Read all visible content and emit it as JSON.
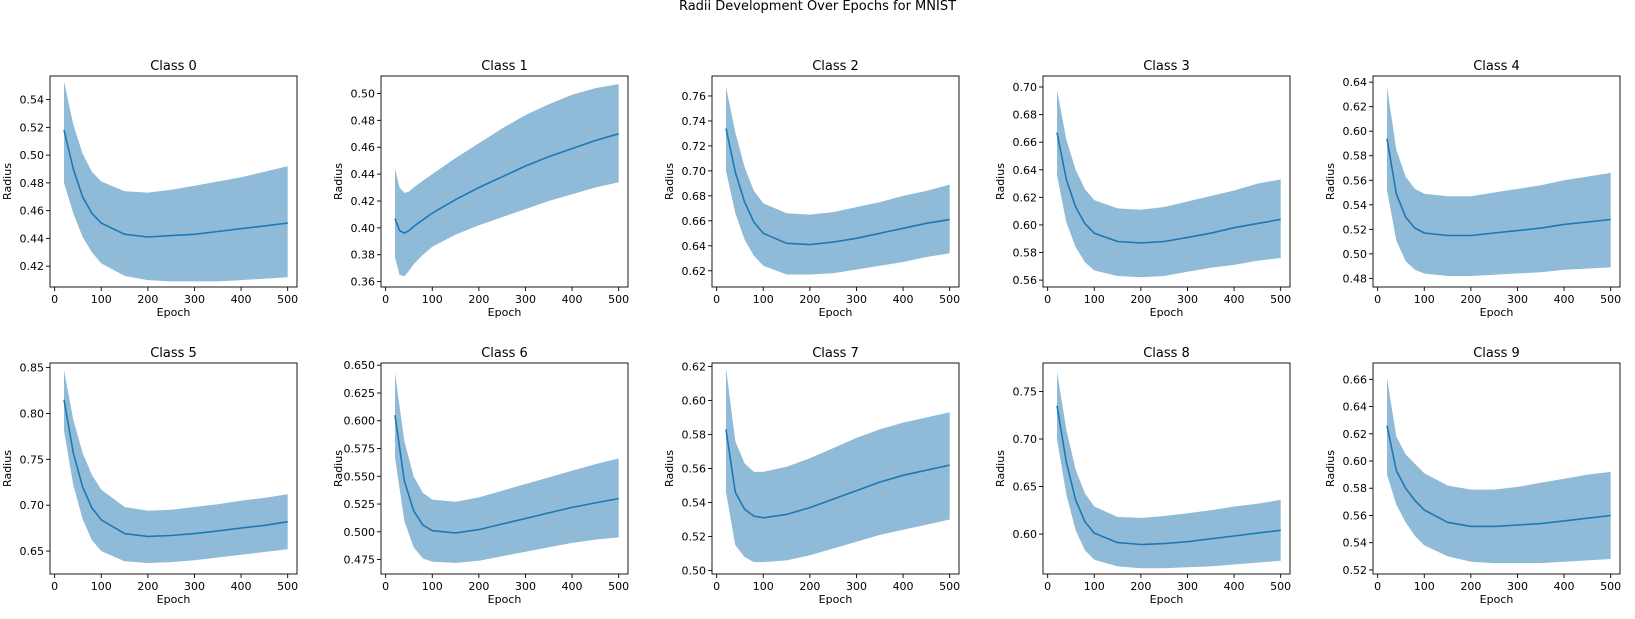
{
  "figure_title": "Radii Development Over Epochs for MNIST",
  "colors": {
    "line": "#1f77b4",
    "band": "#1f77b4",
    "band_opacity": 0.5
  },
  "chart_data": [
    {
      "type": "line",
      "title": "Class 0",
      "xlabel": "Epoch",
      "ylabel": "Radius",
      "xlim": [
        -10,
        520
      ],
      "ylim": [
        0.405,
        0.557
      ],
      "xticks": [
        0,
        100,
        200,
        300,
        400,
        500
      ],
      "yticks": [
        0.42,
        0.44,
        0.46,
        0.48,
        0.5,
        0.52,
        0.54
      ],
      "ytick_labels": [
        "0.42",
        "0.44",
        "0.46",
        "0.48",
        "0.50",
        "0.52",
        "0.54"
      ],
      "x": [
        20,
        40,
        60,
        80,
        100,
        150,
        200,
        250,
        300,
        350,
        400,
        450,
        500
      ],
      "mean": [
        0.518,
        0.49,
        0.47,
        0.458,
        0.451,
        0.443,
        0.441,
        0.442,
        0.443,
        0.445,
        0.447,
        0.449,
        0.451
      ],
      "upper": [
        0.553,
        0.522,
        0.501,
        0.488,
        0.481,
        0.474,
        0.473,
        0.475,
        0.478,
        0.481,
        0.484,
        0.488,
        0.492
      ],
      "lower": [
        0.48,
        0.458,
        0.441,
        0.43,
        0.422,
        0.413,
        0.41,
        0.409,
        0.409,
        0.409,
        0.41,
        0.411,
        0.412
      ]
    },
    {
      "type": "line",
      "title": "Class 1",
      "xlabel": "Epoch",
      "ylabel": "Radius",
      "xlim": [
        -10,
        520
      ],
      "ylim": [
        0.356,
        0.513
      ],
      "xticks": [
        0,
        100,
        200,
        300,
        400,
        500
      ],
      "yticks": [
        0.36,
        0.38,
        0.4,
        0.42,
        0.44,
        0.46,
        0.48,
        0.5
      ],
      "ytick_labels": [
        "0.36",
        "0.38",
        "0.40",
        "0.42",
        "0.44",
        "0.46",
        "0.48",
        "0.50"
      ],
      "x": [
        20,
        30,
        40,
        50,
        60,
        80,
        100,
        150,
        200,
        250,
        300,
        350,
        400,
        450,
        500
      ],
      "mean": [
        0.407,
        0.398,
        0.396,
        0.398,
        0.401,
        0.406,
        0.411,
        0.421,
        0.43,
        0.438,
        0.446,
        0.453,
        0.459,
        0.465,
        0.47
      ],
      "upper": [
        0.444,
        0.43,
        0.426,
        0.427,
        0.43,
        0.435,
        0.44,
        0.452,
        0.463,
        0.474,
        0.484,
        0.492,
        0.499,
        0.504,
        0.507
      ],
      "lower": [
        0.378,
        0.365,
        0.364,
        0.368,
        0.373,
        0.38,
        0.386,
        0.395,
        0.402,
        0.408,
        0.414,
        0.42,
        0.425,
        0.43,
        0.434
      ]
    },
    {
      "type": "line",
      "title": "Class 2",
      "xlabel": "Epoch",
      "ylabel": "Radius",
      "xlim": [
        -10,
        520
      ],
      "ylim": [
        0.607,
        0.776
      ],
      "xticks": [
        0,
        100,
        200,
        300,
        400,
        500
      ],
      "yticks": [
        0.62,
        0.64,
        0.66,
        0.68,
        0.7,
        0.72,
        0.74,
        0.76
      ],
      "ytick_labels": [
        "0.62",
        "0.64",
        "0.66",
        "0.68",
        "0.70",
        "0.72",
        "0.74",
        "0.76"
      ],
      "x": [
        20,
        40,
        60,
        80,
        100,
        150,
        200,
        250,
        300,
        350,
        400,
        450,
        500
      ],
      "mean": [
        0.734,
        0.699,
        0.675,
        0.659,
        0.65,
        0.642,
        0.641,
        0.643,
        0.646,
        0.65,
        0.654,
        0.658,
        0.661
      ],
      "upper": [
        0.767,
        0.731,
        0.703,
        0.684,
        0.674,
        0.666,
        0.665,
        0.667,
        0.671,
        0.675,
        0.68,
        0.684,
        0.689
      ],
      "lower": [
        0.7,
        0.666,
        0.645,
        0.632,
        0.624,
        0.617,
        0.617,
        0.618,
        0.621,
        0.624,
        0.627,
        0.631,
        0.634
      ]
    },
    {
      "type": "line",
      "title": "Class 3",
      "xlabel": "Epoch",
      "ylabel": "Radius",
      "xlim": [
        -10,
        520
      ],
      "ylim": [
        0.555,
        0.708
      ],
      "xticks": [
        0,
        100,
        200,
        300,
        400,
        500
      ],
      "yticks": [
        0.56,
        0.58,
        0.6,
        0.62,
        0.64,
        0.66,
        0.68,
        0.7
      ],
      "ytick_labels": [
        "0.56",
        "0.58",
        "0.60",
        "0.62",
        "0.64",
        "0.66",
        "0.68",
        "0.70"
      ],
      "x": [
        20,
        40,
        60,
        80,
        100,
        150,
        200,
        250,
        300,
        350,
        400,
        450,
        500
      ],
      "mean": [
        0.667,
        0.633,
        0.613,
        0.601,
        0.594,
        0.588,
        0.587,
        0.588,
        0.591,
        0.594,
        0.598,
        0.601,
        0.604
      ],
      "upper": [
        0.698,
        0.662,
        0.64,
        0.626,
        0.618,
        0.612,
        0.611,
        0.613,
        0.617,
        0.621,
        0.625,
        0.63,
        0.633
      ],
      "lower": [
        0.636,
        0.602,
        0.584,
        0.573,
        0.567,
        0.563,
        0.562,
        0.563,
        0.566,
        0.569,
        0.571,
        0.574,
        0.576
      ]
    },
    {
      "type": "line",
      "title": "Class 4",
      "xlabel": "Epoch",
      "ylabel": "Radius",
      "xlim": [
        -10,
        520
      ],
      "ylim": [
        0.473,
        0.645
      ],
      "xticks": [
        0,
        100,
        200,
        300,
        400,
        500
      ],
      "yticks": [
        0.48,
        0.5,
        0.52,
        0.54,
        0.56,
        0.58,
        0.6,
        0.62,
        0.64
      ],
      "ytick_labels": [
        "0.48",
        "0.50",
        "0.52",
        "0.54",
        "0.56",
        "0.58",
        "0.60",
        "0.62",
        "0.64"
      ],
      "x": [
        20,
        40,
        60,
        80,
        100,
        150,
        200,
        250,
        300,
        350,
        400,
        450,
        500
      ],
      "mean": [
        0.594,
        0.549,
        0.53,
        0.521,
        0.517,
        0.515,
        0.515,
        0.517,
        0.519,
        0.521,
        0.524,
        0.526,
        0.528
      ],
      "upper": [
        0.636,
        0.585,
        0.563,
        0.553,
        0.549,
        0.547,
        0.547,
        0.55,
        0.553,
        0.556,
        0.56,
        0.563,
        0.566
      ],
      "lower": [
        0.552,
        0.511,
        0.494,
        0.487,
        0.484,
        0.482,
        0.482,
        0.483,
        0.484,
        0.485,
        0.487,
        0.488,
        0.489
      ]
    },
    {
      "type": "line",
      "title": "Class 5",
      "xlabel": "Epoch",
      "ylabel": "Radius",
      "xlim": [
        -10,
        520
      ],
      "ylim": [
        0.625,
        0.855
      ],
      "xticks": [
        0,
        100,
        200,
        300,
        400,
        500
      ],
      "yticks": [
        0.65,
        0.7,
        0.75,
        0.8,
        0.85
      ],
      "ytick_labels": [
        "0.65",
        "0.70",
        "0.75",
        "0.80",
        "0.85"
      ],
      "x": [
        20,
        40,
        60,
        80,
        100,
        150,
        200,
        250,
        300,
        350,
        400,
        450,
        500
      ],
      "mean": [
        0.815,
        0.757,
        0.72,
        0.697,
        0.684,
        0.669,
        0.666,
        0.667,
        0.669,
        0.672,
        0.675,
        0.678,
        0.682
      ],
      "upper": [
        0.847,
        0.793,
        0.757,
        0.733,
        0.717,
        0.698,
        0.694,
        0.695,
        0.698,
        0.701,
        0.705,
        0.708,
        0.712
      ],
      "lower": [
        0.781,
        0.722,
        0.685,
        0.662,
        0.65,
        0.639,
        0.637,
        0.638,
        0.64,
        0.643,
        0.646,
        0.649,
        0.652
      ]
    },
    {
      "type": "line",
      "title": "Class 6",
      "xlabel": "Epoch",
      "ylabel": "Radius",
      "xlim": [
        -10,
        520
      ],
      "ylim": [
        0.462,
        0.652
      ],
      "xticks": [
        0,
        100,
        200,
        300,
        400,
        500
      ],
      "yticks": [
        0.475,
        0.5,
        0.525,
        0.55,
        0.575,
        0.6,
        0.625,
        0.65
      ],
      "ytick_labels": [
        "0.475",
        "0.500",
        "0.525",
        "0.550",
        "0.575",
        "0.600",
        "0.625",
        "0.650"
      ],
      "x": [
        20,
        40,
        60,
        80,
        100,
        150,
        200,
        250,
        300,
        350,
        400,
        450,
        500
      ],
      "mean": [
        0.605,
        0.546,
        0.519,
        0.506,
        0.501,
        0.499,
        0.502,
        0.507,
        0.512,
        0.517,
        0.522,
        0.526,
        0.53
      ],
      "upper": [
        0.643,
        0.582,
        0.55,
        0.535,
        0.529,
        0.527,
        0.531,
        0.537,
        0.543,
        0.549,
        0.555,
        0.561,
        0.566
      ],
      "lower": [
        0.567,
        0.51,
        0.486,
        0.476,
        0.473,
        0.472,
        0.474,
        0.478,
        0.482,
        0.486,
        0.49,
        0.493,
        0.495
      ]
    },
    {
      "type": "line",
      "title": "Class 7",
      "xlabel": "Epoch",
      "ylabel": "Radius",
      "xlim": [
        -10,
        520
      ],
      "ylim": [
        0.498,
        0.622
      ],
      "xticks": [
        0,
        100,
        200,
        300,
        400,
        500
      ],
      "yticks": [
        0.5,
        0.52,
        0.54,
        0.56,
        0.58,
        0.6,
        0.62
      ],
      "ytick_labels": [
        "0.50",
        "0.52",
        "0.54",
        "0.56",
        "0.58",
        "0.60",
        "0.62"
      ],
      "x": [
        20,
        40,
        60,
        80,
        100,
        150,
        200,
        250,
        300,
        350,
        400,
        450,
        500
      ],
      "mean": [
        0.583,
        0.546,
        0.536,
        0.532,
        0.531,
        0.533,
        0.537,
        0.542,
        0.547,
        0.552,
        0.556,
        0.559,
        0.562
      ],
      "upper": [
        0.619,
        0.576,
        0.563,
        0.558,
        0.558,
        0.561,
        0.566,
        0.572,
        0.578,
        0.583,
        0.587,
        0.59,
        0.593
      ],
      "lower": [
        0.546,
        0.515,
        0.508,
        0.505,
        0.505,
        0.506,
        0.509,
        0.513,
        0.517,
        0.521,
        0.524,
        0.527,
        0.53
      ]
    },
    {
      "type": "line",
      "title": "Class 8",
      "xlabel": "Epoch",
      "ylabel": "Radius",
      "xlim": [
        -10,
        520
      ],
      "ylim": [
        0.558,
        0.78
      ],
      "xticks": [
        0,
        100,
        200,
        300,
        400,
        500
      ],
      "yticks": [
        0.6,
        0.65,
        0.7,
        0.75
      ],
      "ytick_labels": [
        "0.60",
        "0.65",
        "0.70",
        "0.75"
      ],
      "x": [
        20,
        40,
        60,
        80,
        100,
        150,
        200,
        250,
        300,
        350,
        400,
        450,
        500
      ],
      "mean": [
        0.735,
        0.676,
        0.636,
        0.613,
        0.601,
        0.591,
        0.589,
        0.59,
        0.592,
        0.595,
        0.598,
        0.601,
        0.604
      ],
      "upper": [
        0.771,
        0.71,
        0.668,
        0.643,
        0.629,
        0.618,
        0.617,
        0.619,
        0.622,
        0.625,
        0.629,
        0.632,
        0.636
      ],
      "lower": [
        0.7,
        0.642,
        0.604,
        0.583,
        0.573,
        0.566,
        0.564,
        0.564,
        0.565,
        0.566,
        0.568,
        0.57,
        0.572
      ]
    },
    {
      "type": "line",
      "title": "Class 9",
      "xlabel": "Epoch",
      "ylabel": "Radius",
      "xlim": [
        -10,
        520
      ],
      "ylim": [
        0.517,
        0.672
      ],
      "xticks": [
        0,
        100,
        200,
        300,
        400,
        500
      ],
      "yticks": [
        0.52,
        0.54,
        0.56,
        0.58,
        0.6,
        0.62,
        0.64,
        0.66
      ],
      "ytick_labels": [
        "0.52",
        "0.54",
        "0.56",
        "0.58",
        "0.60",
        "0.62",
        "0.64",
        "0.66"
      ],
      "x": [
        20,
        40,
        60,
        80,
        100,
        150,
        200,
        250,
        300,
        350,
        400,
        450,
        500
      ],
      "mean": [
        0.626,
        0.593,
        0.58,
        0.571,
        0.564,
        0.555,
        0.552,
        0.552,
        0.553,
        0.554,
        0.556,
        0.558,
        0.56
      ],
      "upper": [
        0.661,
        0.618,
        0.605,
        0.598,
        0.591,
        0.582,
        0.579,
        0.579,
        0.581,
        0.584,
        0.587,
        0.59,
        0.592
      ],
      "lower": [
        0.59,
        0.568,
        0.555,
        0.545,
        0.538,
        0.53,
        0.526,
        0.525,
        0.525,
        0.525,
        0.526,
        0.527,
        0.528
      ]
    }
  ]
}
